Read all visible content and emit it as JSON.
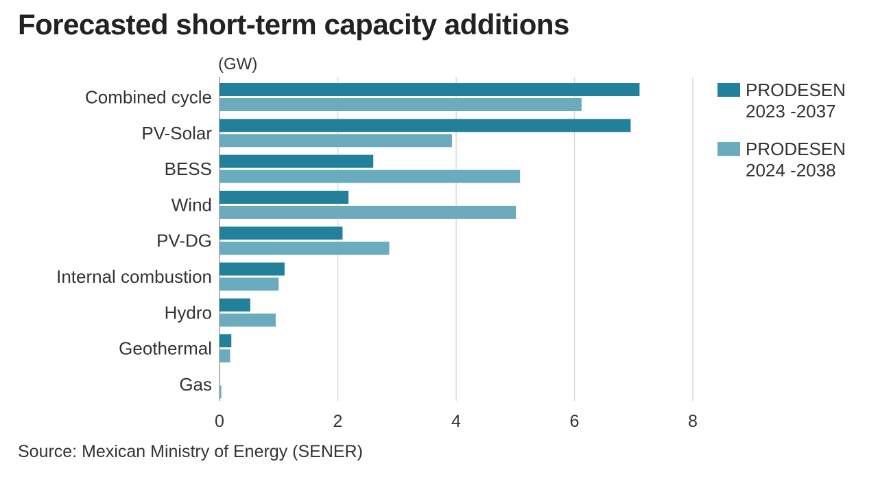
{
  "title": "Forecasted short-term capacity additions",
  "unit_label": "(GW)",
  "source": "Source: Mexican Ministry of Energy (SENER)",
  "legend": [
    {
      "line1": "PRODESEN",
      "line2": "2023 -2037",
      "color": "#23809b"
    },
    {
      "line1": "PRODESEN",
      "line2": "2024 -2038",
      "color": "#6aabbe"
    }
  ],
  "chart_data": {
    "type": "bar",
    "orientation": "horizontal",
    "title": "Forecasted short-term capacity additions",
    "xlabel": "(GW)",
    "ylabel": "",
    "categories": [
      "Combined cycle",
      "PV-Solar",
      "BESS",
      "Wind",
      "PV-DG",
      "Internal combustion",
      "Hydro",
      "Geothermal",
      "Gas"
    ],
    "series": [
      {
        "name": "PRODESEN 2023 -2037",
        "color": "#23809b",
        "values": [
          7.1,
          6.95,
          2.6,
          2.18,
          2.08,
          1.1,
          0.52,
          0.2,
          0
        ]
      },
      {
        "name": "PRODESEN 2024 -2038",
        "color": "#6aabbe",
        "values": [
          6.12,
          3.93,
          5.08,
          5.01,
          2.87,
          1.0,
          0.95,
          0.18,
          0.03
        ]
      }
    ],
    "xlim": [
      0,
      8
    ],
    "x_ticks": [
      0,
      2,
      4,
      6,
      8
    ],
    "grid": true,
    "legend_position": "right"
  }
}
